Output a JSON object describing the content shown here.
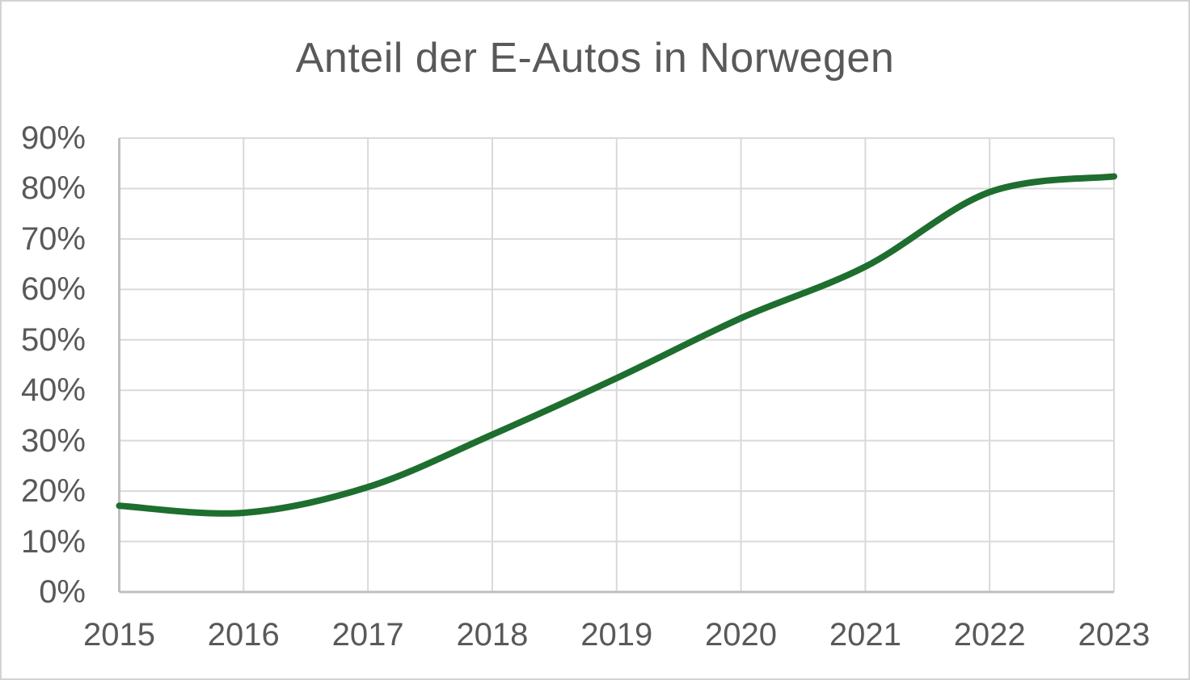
{
  "chart_data": {
    "type": "line",
    "title": "Anteil der E-Autos in Norwegen",
    "categories": [
      "2015",
      "2016",
      "2017",
      "2018",
      "2019",
      "2020",
      "2021",
      "2022",
      "2023"
    ],
    "values": [
      17.1,
      15.7,
      20.8,
      31.2,
      42.4,
      54.3,
      64.5,
      79.3,
      82.4
    ],
    "xlabel": "",
    "ylabel": "",
    "ylim": [
      0,
      90
    ],
    "y_ticks": [
      0,
      10,
      20,
      30,
      40,
      50,
      60,
      70,
      80,
      90
    ],
    "y_tick_labels": [
      "0%",
      "10%",
      "20%",
      "30%",
      "40%",
      "50%",
      "60%",
      "70%",
      "80%",
      "90%"
    ],
    "grid": true,
    "legend": false,
    "smooth": true,
    "line_color": "#1e6e2f"
  },
  "colors": {
    "text": "#595959",
    "gridline": "#d9d9d9",
    "axis_line": "#bfbfbf",
    "background": "#ffffff",
    "frame_border": "#d3d3d3"
  }
}
